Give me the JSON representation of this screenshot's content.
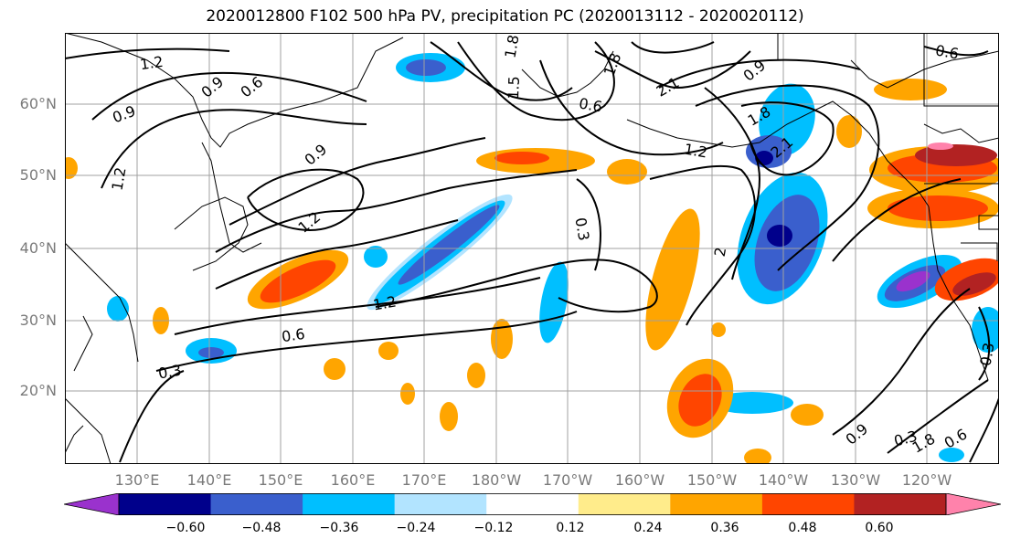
{
  "title": "2020012800 F102 500 hPa PV, precipitation PC (2020013112 - 2020020112)",
  "map": {
    "lon_labels": [
      "130°E",
      "140°E",
      "150°E",
      "160°E",
      "170°E",
      "180°W",
      "170°W",
      "160°W",
      "150°W",
      "140°W",
      "130°W",
      "120°W"
    ],
    "lat_labels": [
      "60°N",
      "50°N",
      "40°N",
      "30°N",
      "20°N"
    ],
    "contour_labels": [
      {
        "text": "1.2"
      },
      {
        "text": "0.9"
      },
      {
        "text": "0.6"
      },
      {
        "text": "0.9"
      },
      {
        "text": "1.2"
      },
      {
        "text": "0.9"
      },
      {
        "text": "1.2"
      },
      {
        "text": "1.2"
      },
      {
        "text": "0.6"
      },
      {
        "text": "0.3"
      },
      {
        "text": "1.5"
      },
      {
        "text": "1.8"
      },
      {
        "text": "1.8"
      },
      {
        "text": "0.6"
      },
      {
        "text": "2.1"
      },
      {
        "text": "0.9"
      },
      {
        "text": "1.8"
      },
      {
        "text": "2.1"
      },
      {
        "text": "1.2"
      },
      {
        "text": "0.3"
      },
      {
        "text": "2"
      },
      {
        "text": "0.9"
      },
      {
        "text": "0.3"
      },
      {
        "text": "0.6"
      },
      {
        "text": "0.3"
      },
      {
        "text": "0.6"
      },
      {
        "text": "1.8"
      }
    ]
  },
  "colorbar": {
    "colors": [
      "#9a32cd",
      "#00008b",
      "#3a5fcd",
      "#00bfff",
      "#b2e4ff",
      "#ffffff",
      "#ffec8b",
      "#ffa500",
      "#ff4500",
      "#b22222",
      "#ff82ab"
    ],
    "tick_labels": [
      "−0.60",
      "−0.48",
      "−0.36",
      "−0.24",
      "−0.12",
      "0.12",
      "0.24",
      "0.36",
      "0.48",
      "0.60"
    ]
  }
}
